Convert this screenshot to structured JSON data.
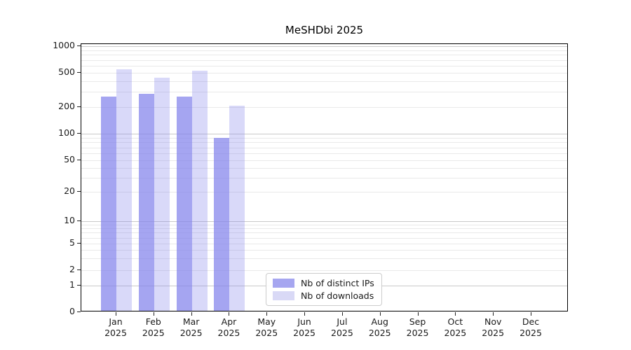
{
  "chart_data": {
    "type": "bar",
    "title": "MeSHDbi 2025",
    "year_label": "2025",
    "categories": [
      "Jan",
      "Feb",
      "Mar",
      "Apr",
      "May",
      "Jun",
      "Jul",
      "Aug",
      "Sep",
      "Oct",
      "Nov",
      "Dec"
    ],
    "ytick_labels": [
      "0",
      "1",
      "2",
      "5",
      "10",
      "20",
      "50",
      "100",
      "200",
      "500",
      "1000"
    ],
    "yticks": [
      0,
      1,
      2,
      5,
      10,
      20,
      50,
      100,
      200,
      500,
      1000
    ],
    "yscale": "symlog",
    "ylim": [
      0,
      1100
    ],
    "grid": true,
    "legend_position": "lower center",
    "series": [
      {
        "name": "Nb of distinct IPs",
        "fill": "rgba(130,130,235,0.72)",
        "swatch": "#a6a6f0",
        "values": [
          255,
          275,
          255,
          87,
          null,
          null,
          null,
          null,
          null,
          null,
          null,
          null
        ]
      },
      {
        "name": "Nb of downloads",
        "fill": "rgba(130,130,235,0.30)",
        "swatch": "#d9d9f6",
        "values": [
          525,
          425,
          505,
          200,
          null,
          null,
          null,
          null,
          null,
          null,
          null,
          null
        ]
      }
    ]
  },
  "colors": {
    "major_grid": "#c9c9c9",
    "minor_grid": "#e9e9e9",
    "spine": "#000000",
    "text": "#1a1a1a"
  }
}
